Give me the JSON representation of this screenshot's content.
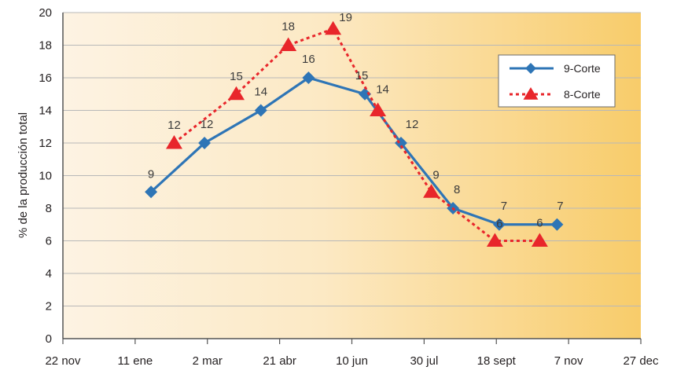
{
  "chart_data": {
    "type": "line",
    "ylabel": "% de la producción total",
    "xlabel": "",
    "title": "",
    "x_ticks": [
      "22 nov",
      "11 ene",
      "2 mar",
      "21 abr",
      "10 jun",
      "30 jul",
      "18 sept",
      "7 nov",
      "27 dec"
    ],
    "y_ticks": [
      "0",
      "2",
      "4",
      "6",
      "8",
      "10",
      "12",
      "14",
      "16",
      "18",
      "20"
    ],
    "ylim": [
      0,
      20
    ],
    "x_dates": [
      "2021-11-22",
      "2022-01-11",
      "2022-03-02",
      "2022-04-21",
      "2022-06-10",
      "2022-07-30",
      "2022-09-18",
      "2022-11-07",
      "2022-12-27"
    ],
    "grid": "horizontal",
    "legend_position": "top-right",
    "series": [
      {
        "name": "9-Corte",
        "color": "#2e75b6",
        "marker": "diamond",
        "line_style": "solid",
        "points": [
          {
            "x": "2022-01-22",
            "y": 9
          },
          {
            "x": "2022-02-28",
            "y": 12
          },
          {
            "x": "2022-04-08",
            "y": 14
          },
          {
            "x": "2022-05-11",
            "y": 16
          },
          {
            "x": "2022-06-19",
            "y": 15
          },
          {
            "x": "2022-07-14",
            "y": 12
          },
          {
            "x": "2022-08-19",
            "y": 8
          },
          {
            "x": "2022-09-20",
            "y": 7
          },
          {
            "x": "2022-10-30",
            "y": 7
          }
        ]
      },
      {
        "name": "8-Corte",
        "color": "#e8262b",
        "marker": "triangle",
        "line_style": "dotted",
        "points": [
          {
            "x": "2022-02-07",
            "y": 12
          },
          {
            "x": "2022-03-22",
            "y": 15
          },
          {
            "x": "2022-04-27",
            "y": 18
          },
          {
            "x": "2022-05-28",
            "y": 19
          },
          {
            "x": "2022-06-28",
            "y": 14
          },
          {
            "x": "2022-08-04",
            "y": 9
          },
          {
            "x": "2022-09-17",
            "y": 6
          },
          {
            "x": "2022-10-18",
            "y": 6
          }
        ]
      }
    ]
  }
}
